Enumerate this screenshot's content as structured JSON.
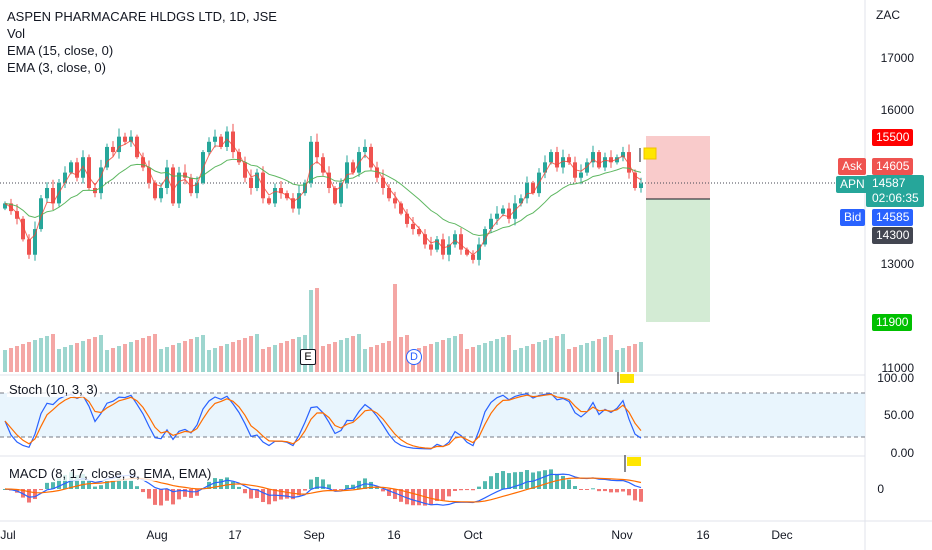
{
  "legend": {
    "symbol": "ASPEN PHARMACARE HLDGS LTD, 1D, JSE",
    "vol": "Vol",
    "ema15": "EMA (15, close, 0)",
    "ema3": "EMA (3, close, 0)"
  },
  "indicators": {
    "stoch": "Stoch (10, 3, 3)",
    "macd": "MACD (8, 17, close, 9, EMA, EMA)"
  },
  "price_axis": {
    "currency": "ZAC",
    "ticks": [
      "17000",
      "16000",
      "13000",
      "11000"
    ],
    "stoch_ticks": [
      "100.00",
      "50.00",
      "0.00"
    ],
    "macd_ticks": [
      "0"
    ]
  },
  "price_tags": {
    "target_high": "15500",
    "ask_label": "Ask",
    "ask_value": "14605",
    "symbol_short": "APN",
    "last_value": "14587",
    "countdown": "02:06:35",
    "bid_label": "Bid",
    "bid_value": "14585",
    "stop_value": "14300",
    "target_low": "11900"
  },
  "events": {
    "earnings": "E",
    "dividend": "D"
  },
  "time_axis": [
    "Jul",
    "Aug",
    "17",
    "Sep",
    "16",
    "Oct",
    "Nov",
    "16",
    "Dec"
  ],
  "colors": {
    "up": "#26a69a",
    "down": "#ef5350",
    "ask": "#ef5350",
    "last": "#26a69a",
    "bid": "#2962ff",
    "stop": "#434651",
    "target_high": "#ff0000",
    "target_low": "#00c000"
  },
  "chart_data": {
    "type": "candlestick",
    "title": "ASPEN PHARMACARE HLDGS LTD, 1D, JSE",
    "currency": "ZAC",
    "closes": [
      14200,
      14050,
      13900,
      13500,
      13200,
      13700,
      14300,
      14500,
      14200,
      14600,
      14800,
      15000,
      14700,
      15100,
      14500,
      14400,
      14900,
      15300,
      15200,
      15500,
      15400,
      15500,
      15100,
      14900,
      14600,
      14300,
      14500,
      14900,
      14200,
      14800,
      14700,
      14400,
      14600,
      15200,
      15400,
      15500,
      15300,
      15600,
      15200,
      15000,
      14700,
      14500,
      14800,
      14300,
      14200,
      14500,
      14400,
      14300,
      14100,
      14400,
      14600,
      15400,
      15100,
      14800,
      14500,
      14200,
      14600,
      15000,
      14800,
      15200,
      15300,
      14900,
      14700,
      14500,
      14300,
      14200,
      14000,
      13800,
      13700,
      13600,
      13400,
      13300,
      13500,
      13200,
      13400,
      13600,
      13300,
      13200,
      13100,
      13400,
      13700,
      13900,
      14000,
      14100,
      13900,
      14200,
      14300,
      14600,
      14400,
      14800,
      15000,
      15200,
      14900,
      15100,
      15000,
      14700,
      14800,
      15000,
      15200,
      14900,
      15100,
      15000,
      15100,
      15200,
      14800,
      14500,
      14587
    ],
    "ema15_start": 14200,
    "volume_note": "volume bars colored by direction",
    "stoch_levels": [
      20,
      80
    ],
    "target_high": 15500,
    "target_low": 11900,
    "stop": 14300
  }
}
